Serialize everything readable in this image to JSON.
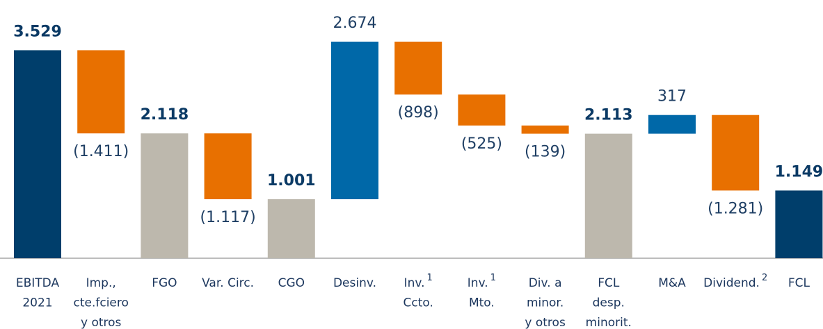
{
  "chart_data": {
    "type": "waterfall",
    "categories": [
      [
        "EBITDA",
        "2021"
      ],
      [
        "Imp.,",
        "cte.fciero",
        "y otros"
      ],
      [
        "FGO"
      ],
      [
        "Var. Circ."
      ],
      [
        "CGO"
      ],
      [
        "Desinv."
      ],
      [
        "Inv.",
        "Ccto."
      ],
      [
        "Inv.",
        "Mto."
      ],
      [
        "Div. a",
        "minor.",
        "y otros"
      ],
      [
        "FCL",
        "desp.",
        "minorit."
      ],
      [
        "M&A"
      ],
      [
        "Dividend."
      ],
      [
        "FCL"
      ]
    ],
    "category_notes": [
      null,
      null,
      null,
      null,
      null,
      null,
      "1",
      "1",
      null,
      null,
      null,
      "2",
      null
    ],
    "kinds": [
      "total",
      "delta",
      "total",
      "delta",
      "total",
      "delta",
      "delta",
      "delta",
      "delta",
      "total",
      "delta",
      "delta",
      "total"
    ],
    "values": [
      3529,
      -1411,
      2118,
      -1117,
      1001,
      2674,
      -898,
      -525,
      -139,
      2113,
      317,
      -1281,
      1149
    ],
    "value_labels": [
      "3.529",
      "(1.411)",
      "2.118",
      "(1.117)",
      "1.001",
      "2.674",
      "(898)",
      "(525)",
      "(139)",
      "2.113",
      "317",
      "(1.281)",
      "1.149"
    ],
    "colors": [
      "#003e6b",
      "#e87000",
      "#bdb8ad",
      "#e87000",
      "#bdb8ad",
      "#0068a8",
      "#e87000",
      "#e87000",
      "#e87000",
      "#bdb8ad",
      "#0068a8",
      "#e87000",
      "#003e6b"
    ]
  }
}
